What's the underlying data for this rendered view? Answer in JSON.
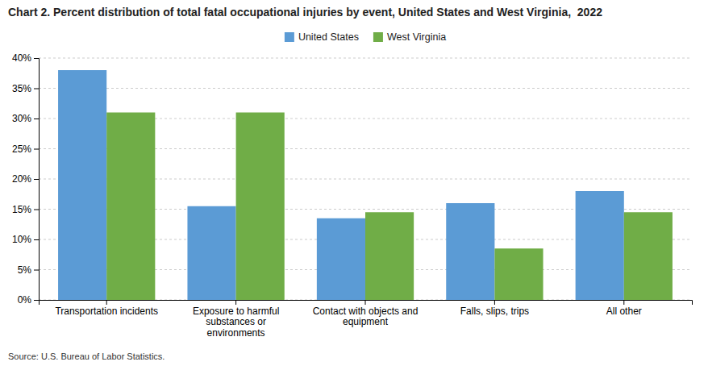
{
  "chart_data": {
    "type": "bar",
    "title": "Chart 2. Percent distribution of total fatal occupational injuries by event, United States and West Virginia,  2022",
    "categories": [
      "Transportation incidents",
      "Exposure to harmful\nsubstances or\nenvironments",
      "Contact with objects and\nequipment",
      "Falls, slips, trips",
      "All other"
    ],
    "series": [
      {
        "name": "United States",
        "values": [
          38.0,
          15.5,
          13.5,
          16.0,
          18.0
        ],
        "color": "#5B9BD5"
      },
      {
        "name": "West Virginia",
        "values": [
          31.0,
          31.0,
          14.5,
          8.5,
          14.5
        ],
        "color": "#70AD47"
      }
    ],
    "ylim": [
      0,
      40
    ],
    "yticks": [
      {
        "value": 0,
        "label": "0%"
      },
      {
        "value": 5,
        "label": "5%"
      },
      {
        "value": 10,
        "label": "10%"
      },
      {
        "value": 15,
        "label": "15%"
      },
      {
        "value": 20,
        "label": "20%"
      },
      {
        "value": 25,
        "label": "25%"
      },
      {
        "value": 30,
        "label": "30%"
      },
      {
        "value": 35,
        "label": "35%"
      },
      {
        "value": 40,
        "label": "40%"
      }
    ],
    "grid": true,
    "legend": "top",
    "source": "Source: U.S. Bureau of Labor Statistics."
  }
}
